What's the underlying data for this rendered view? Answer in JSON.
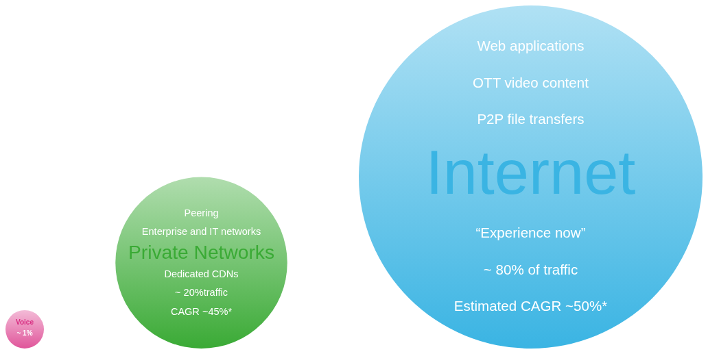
{
  "chart_data": {
    "type": "other",
    "categories": [
      "Voice",
      "Private Networks",
      "Internet"
    ],
    "values": [
      1,
      20,
      80
    ],
    "value_labels": [
      "~ 1%",
      "~ 20%traffic",
      "~ 80% of traffic"
    ],
    "colors": [
      "#e0559a",
      "#3aaa35",
      "#3ab4e3"
    ],
    "annotations": [
      {
        "text": "Web applications",
        "x": "Internet"
      },
      {
        "text": "OTT video content",
        "x": "Internet"
      },
      {
        "text": "P2P file transfers",
        "x": "Internet"
      },
      {
        "text": "“Experience now”",
        "x": "Internet"
      },
      {
        "text": "Estimated CAGR ~50%*",
        "x": "Internet"
      },
      {
        "text": "Peering",
        "x": "Private Networks"
      },
      {
        "text": "Enterprise and IT networks",
        "x": "Private Networks"
      },
      {
        "text": "Dedicated CDNs",
        "x": "Private Networks"
      },
      {
        "text": "CAGR ~45%*",
        "x": "Private Networks"
      }
    ]
  }
}
